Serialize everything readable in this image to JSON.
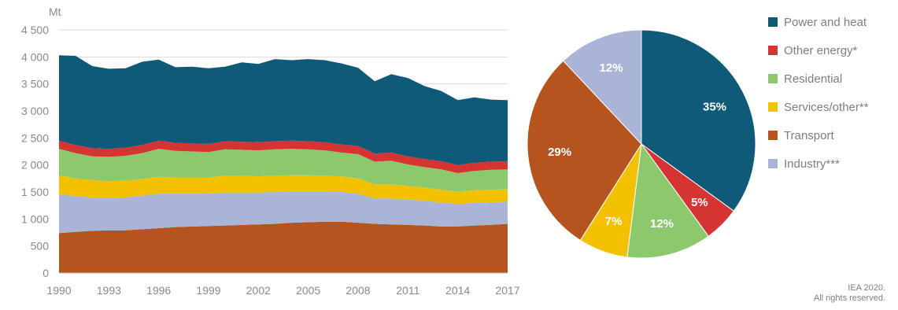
{
  "chart_data": [
    {
      "type": "area",
      "stacked": true,
      "ylabel": "Mt",
      "ylim": [
        0,
        4500
      ],
      "yticks": [
        "0",
        "500",
        "1 000",
        "1 500",
        "2 000",
        "2 500",
        "3 000",
        "3 500",
        "4 000",
        "4 500"
      ],
      "xticks": [
        "1990",
        "1993",
        "1996",
        "1999",
        "2002",
        "2005",
        "2008",
        "2011",
        "2014",
        "2017"
      ],
      "grid": true,
      "x": [
        1990,
        1991,
        1992,
        1993,
        1994,
        1995,
        1996,
        1997,
        1998,
        1999,
        2000,
        2001,
        2002,
        2003,
        2004,
        2005,
        2006,
        2007,
        2008,
        2009,
        2010,
        2011,
        2012,
        2013,
        2014,
        2015,
        2016,
        2017
      ],
      "series": [
        {
          "name": "Transport",
          "color": "#b5541e",
          "values": [
            740,
            760,
            780,
            790,
            790,
            810,
            830,
            850,
            860,
            870,
            880,
            890,
            900,
            910,
            930,
            940,
            950,
            950,
            930,
            910,
            900,
            890,
            880,
            860,
            860,
            880,
            890,
            910
          ]
        },
        {
          "name": "Industry***",
          "color": "#a9b4d6",
          "values": [
            720,
            660,
            620,
            600,
            610,
            620,
            640,
            620,
            610,
            600,
            610,
            600,
            590,
            590,
            580,
            570,
            560,
            550,
            540,
            470,
            480,
            470,
            460,
            440,
            420,
            420,
            420,
            410
          ]
        },
        {
          "name": "Services/other**",
          "color": "#f2c200",
          "values": [
            350,
            330,
            320,
            310,
            310,
            310,
            310,
            300,
            300,
            300,
            310,
            310,
            300,
            300,
            300,
            300,
            290,
            290,
            280,
            260,
            260,
            250,
            240,
            240,
            230,
            230,
            230,
            230
          ]
        },
        {
          "name": "Residential",
          "color": "#8cc96c",
          "values": [
            490,
            470,
            440,
            450,
            460,
            480,
            520,
            490,
            480,
            470,
            490,
            480,
            480,
            490,
            490,
            480,
            470,
            440,
            450,
            420,
            440,
            400,
            380,
            380,
            340,
            360,
            370,
            370
          ]
        },
        {
          "name": "Other energy*",
          "color": "#d63333",
          "values": [
            150,
            150,
            150,
            150,
            150,
            150,
            150,
            150,
            150,
            150,
            150,
            150,
            150,
            150,
            150,
            150,
            150,
            150,
            150,
            150,
            150,
            150,
            150,
            150,
            150,
            150,
            150,
            150
          ]
        },
        {
          "name": "Power and heat",
          "color": "#0f5a78",
          "values": [
            1580,
            1650,
            1520,
            1480,
            1470,
            1540,
            1500,
            1400,
            1420,
            1400,
            1380,
            1470,
            1450,
            1520,
            1490,
            1520,
            1520,
            1500,
            1450,
            1340,
            1450,
            1450,
            1350,
            1300,
            1200,
            1210,
            1150,
            1130
          ]
        }
      ]
    },
    {
      "type": "pie",
      "slices": [
        {
          "name": "Power and heat",
          "value": 35,
          "label": "35%",
          "color": "#0f5a78",
          "label_color": "#ffffff"
        },
        {
          "name": "Other energy*",
          "value": 5,
          "label": "5%",
          "color": "#d63333",
          "label_color": "#ffffff"
        },
        {
          "name": "Residential",
          "value": 12,
          "label": "12%",
          "color": "#8cc96c",
          "label_color": "#ffffff"
        },
        {
          "name": "Services/other**",
          "value": 7,
          "label": "7%",
          "color": "#f2c200",
          "label_color": "#ffffff"
        },
        {
          "name": "Transport",
          "value": 29,
          "label": "29%",
          "color": "#b5541e",
          "label_color": "#ffffff"
        },
        {
          "name": "Industry***",
          "value": 12,
          "label": "12%",
          "color": "#a9b4d6",
          "label_color": "#ffffff"
        }
      ]
    }
  ],
  "legend": [
    {
      "label": "Power and heat",
      "color": "#0f5a78"
    },
    {
      "label": "Other energy*",
      "color": "#d63333"
    },
    {
      "label": "Residential",
      "color": "#8cc96c"
    },
    {
      "label": "Services/other**",
      "color": "#f2c200"
    },
    {
      "label": "Transport",
      "color": "#b5541e"
    },
    {
      "label": "Industry***",
      "color": "#a9b4d6"
    }
  ],
  "credit": {
    "line1": "IEA 2020.",
    "line2": "All rights reserved."
  }
}
